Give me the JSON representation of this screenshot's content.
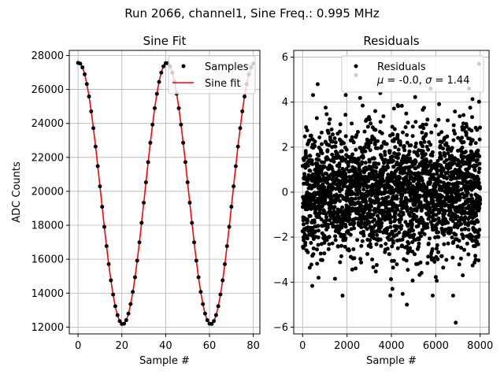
{
  "figure": {
    "suptitle": "Run 2066, channel1, Sine Freq.: 0.995 MHz"
  },
  "chart_data": [
    {
      "type": "scatter",
      "title": "Sine Fit",
      "xlabel": "Sample #",
      "ylabel": "ADC Counts",
      "xlim": [
        -4,
        83
      ],
      "ylim": [
        11600,
        28300
      ],
      "xticks": [
        0,
        20,
        40,
        60,
        80
      ],
      "yticks": [
        12000,
        14000,
        16000,
        18000,
        20000,
        22000,
        24000,
        26000,
        28000
      ],
      "grid": true,
      "legend_position": "upper right",
      "sine_model": {
        "offset": 19870,
        "amplitude": 7700,
        "period_samples": 40.2,
        "phase_samples": 0.3
      },
      "series": [
        {
          "name": "Samples",
          "kind": "points",
          "color": "#000000",
          "x": [
            0,
            1,
            2,
            3,
            4,
            5,
            6,
            7,
            8,
            9,
            10,
            11,
            12,
            13,
            14,
            15,
            16,
            17,
            18,
            19,
            20,
            21,
            22,
            23,
            24,
            25,
            26,
            27,
            28,
            29,
            30,
            31,
            32,
            33,
            34,
            35,
            36,
            37,
            38,
            39,
            40,
            41,
            42,
            43,
            44,
            45,
            46,
            47,
            48,
            49,
            50,
            51,
            52,
            53,
            54,
            55,
            56,
            57,
            58,
            59,
            60,
            61,
            62,
            63,
            64,
            65,
            66,
            67,
            68,
            69,
            70,
            71,
            72,
            73,
            74,
            75,
            76,
            77,
            78,
            79,
            80
          ]
        },
        {
          "name": "Sine fit",
          "kind": "line",
          "color": "#ff0000"
        }
      ]
    },
    {
      "type": "scatter",
      "title": "Residuals",
      "xlabel": "Sample #",
      "ylabel": "",
      "xlim": [
        -400,
        8400
      ],
      "ylim": [
        -6.3,
        6.3
      ],
      "xticks": [
        0,
        2000,
        4000,
        6000,
        8000
      ],
      "yticks": [
        -6,
        -4,
        -2,
        0,
        2,
        4,
        6
      ],
      "grid": true,
      "legend_position": "upper right",
      "series": [
        {
          "name": "Residuals",
          "kind": "points",
          "color": "#000000",
          "n_points": 8000,
          "mean": -0.0,
          "sigma": 1.44,
          "notable_points": [
            [
              680,
              4.8
            ],
            [
              2400,
              5.2
            ],
            [
              3500,
              4.4
            ],
            [
              6900,
              -5.8
            ],
            [
              7950,
              5.7
            ],
            [
              4700,
              -5.0
            ],
            [
              1800,
              -4.6
            ],
            [
              7500,
              4.6
            ]
          ]
        }
      ],
      "legend": {
        "label": "Residuals",
        "stats_mu": "-0.0",
        "stats_sigma": "1.44"
      }
    }
  ]
}
